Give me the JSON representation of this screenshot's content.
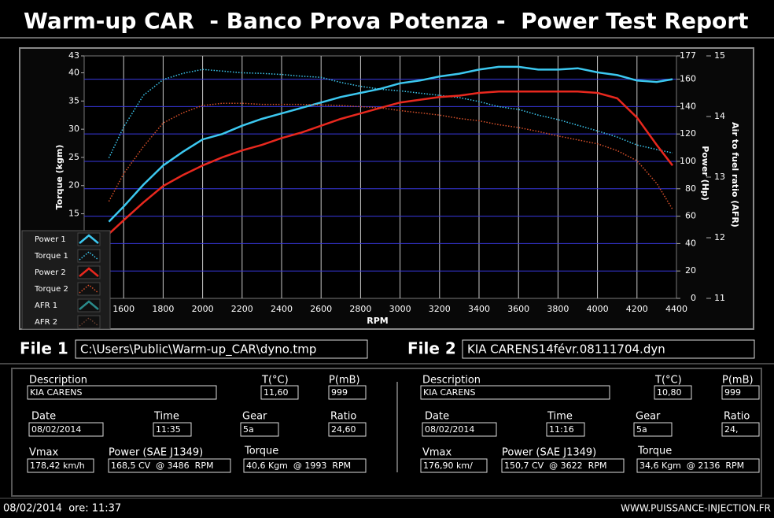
{
  "header": {
    "title": "Warm-up CAR  - Banco Prova Potenza -  Power Test Report"
  },
  "chart_data": {
    "type": "line",
    "x_label": "RPM",
    "y_label": "Torque (kgm)",
    "y2_label": "Power (Hp)",
    "y3_label": "Air to fuel ratio (AFR)",
    "x": [
      1525,
      1600,
      1700,
      1800,
      1900,
      2000,
      2100,
      2200,
      2300,
      2400,
      2500,
      2600,
      2700,
      2800,
      2900,
      3000,
      3100,
      3200,
      3300,
      3400,
      3500,
      3600,
      3700,
      3800,
      3900,
      4000,
      4100,
      4200,
      4300,
      4380
    ],
    "xlim": [
      1400,
      4400
    ],
    "xticks": [
      1600,
      1800,
      2000,
      2200,
      2400,
      2600,
      2800,
      3000,
      3200,
      3400,
      3600,
      3800,
      4000,
      4200,
      4400
    ],
    "ylim": [
      0,
      43
    ],
    "yticks": [
      15,
      20,
      25,
      30,
      35,
      40,
      43
    ],
    "y2lim": [
      0,
      177
    ],
    "y2ticks": [
      0,
      20,
      40,
      60,
      80,
      100,
      120,
      140,
      160,
      177
    ],
    "y3lim": [
      11,
      15
    ],
    "y3ticks": [
      11,
      12,
      13,
      14,
      15
    ],
    "grid": true,
    "series": [
      {
        "name": "Power 1",
        "color": "#3cc8f0",
        "style": "solid",
        "axis": "y2",
        "values": [
          56,
          67,
          83,
          97,
          107,
          116,
          120,
          126,
          131,
          135,
          139,
          143,
          147,
          150,
          153,
          157,
          159,
          162,
          164,
          167,
          169,
          169,
          167,
          167,
          168,
          165,
          163,
          159,
          158,
          160
        ]
      },
      {
        "name": "Torque 1",
        "color": "#3cc8f0",
        "style": "dotted",
        "axis": "y",
        "values": [
          24.9,
          30.4,
          36,
          38.8,
          39.9,
          40.6,
          40.3,
          40,
          39.9,
          39.7,
          39.4,
          39.2,
          38.3,
          37.6,
          37.1,
          36.8,
          36.4,
          36,
          35.6,
          34.9,
          34,
          33.5,
          32.5,
          31.7,
          30.7,
          29.7,
          28.6,
          27.2,
          26.4,
          25.8
        ]
      },
      {
        "name": "Power 2",
        "color": "#e8281e",
        "style": "solid",
        "axis": "y2",
        "values": [
          47,
          57,
          70,
          82,
          90,
          97,
          103,
          108,
          112,
          117,
          121,
          126,
          131,
          135,
          139,
          143,
          145,
          147,
          148,
          150,
          151,
          151,
          151,
          151,
          151,
          150,
          146,
          132,
          112,
          97
        ]
      },
      {
        "name": "Torque 2",
        "color": "#d8502a",
        "style": "dotted",
        "axis": "y",
        "values": [
          17.2,
          22.1,
          26.9,
          31.1,
          32.9,
          34.2,
          34.6,
          34.6,
          34.4,
          34.4,
          34.4,
          34.3,
          34.2,
          34,
          33.8,
          33.3,
          32.9,
          32.5,
          31.9,
          31.5,
          30.8,
          30.3,
          29.6,
          28.8,
          28.1,
          27.4,
          26.2,
          24.4,
          20.4,
          15.8
        ]
      },
      {
        "name": "AFR 1",
        "color": "#2a8a8a",
        "style": "solid",
        "axis": "y3",
        "values": [
          null,
          null,
          null,
          null,
          null,
          null,
          null,
          null,
          null,
          null,
          null,
          null,
          null,
          null,
          null,
          null,
          null,
          null,
          null,
          null,
          null,
          null,
          null,
          null,
          null,
          null,
          null,
          null,
          null,
          null
        ]
      },
      {
        "name": "AFR 2",
        "color": "#6a4030",
        "style": "dotted",
        "axis": "y3",
        "values": [
          null,
          null,
          null,
          null,
          null,
          null,
          null,
          null,
          null,
          null,
          null,
          null,
          null,
          null,
          null,
          null,
          null,
          null,
          null,
          null,
          null,
          null,
          null,
          null,
          null,
          null,
          null,
          null,
          null,
          null
        ]
      }
    ]
  },
  "files": [
    {
      "label": "File 1",
      "path": "C:\\Users\\Public\\Warm-up_CAR\\dyno.tmp"
    },
    {
      "label": "File 2",
      "path": "KIA CARENS14févr.08111704.dyn"
    }
  ],
  "panels": [
    {
      "fields": [
        {
          "label": "Description",
          "value": "KIA CARENS"
        },
        {
          "label": "T(°C)",
          "value": "11,60"
        },
        {
          "label": "P(mB)",
          "value": "999"
        },
        {
          "label": "Date",
          "value": "08/02/2014"
        },
        {
          "label": "Time",
          "value": "11:35"
        },
        {
          "label": "Gear",
          "value": "5a"
        },
        {
          "label": "Ratio",
          "value": "24,60"
        },
        {
          "label": "Vmax",
          "value": "178,42 km/h"
        },
        {
          "label": "Power (SAE J1349)",
          "value": "168,5 CV  @ 3486  RPM"
        },
        {
          "label": "Torque",
          "value": "40,6 Kgm  @ 1993  RPM"
        }
      ]
    },
    {
      "fields": [
        {
          "label": "Description",
          "value": "KIA CARENS"
        },
        {
          "label": "T(°C)",
          "value": "10,80"
        },
        {
          "label": "P(mB)",
          "value": "999"
        },
        {
          "label": "Date",
          "value": "08/02/2014"
        },
        {
          "label": "Time",
          "value": "11:16"
        },
        {
          "label": "Gear",
          "value": "5a"
        },
        {
          "label": "Ratio",
          "value": "24,"
        },
        {
          "label": "Vmax",
          "value": "176,90 km/"
        },
        {
          "label": "Power (SAE J1349)",
          "value": "150,7 CV  @ 3622  RPM"
        },
        {
          "label": "Torque",
          "value": "34,6 Kgm  @ 2136  RPM"
        }
      ]
    }
  ],
  "footer": {
    "datetime": "08/02/2014  ore: 11:37",
    "site": "WWW.PUISSANCE-INJECTION.FR"
  }
}
